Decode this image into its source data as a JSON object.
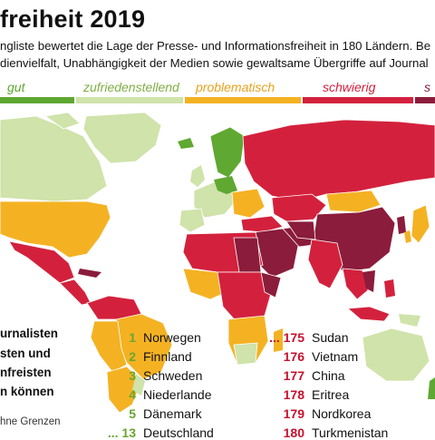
{
  "header": {
    "title": "freiheit 2019",
    "subtitle_line1": "ngliste bewertet die Lage der Presse- und Informationsfreiheit in 180 Ländern. Be",
    "subtitle_line2": "dienvielfalt, Unabhängigkeit der Medien sowie gewaltsame Übergriffe auf Journal"
  },
  "legend": [
    {
      "label": "gut",
      "color": "#5fa831"
    },
    {
      "label": "zufriedenstellend",
      "color": "#cfe3aa"
    },
    {
      "label": "problematisch",
      "color": "#f4b223"
    },
    {
      "label": "schwierig",
      "color": "#d3213d"
    },
    {
      "label": "s",
      "color": "#8b1c3b"
    }
  ],
  "info_box": {
    "line1": "urnalisten",
    "line2": "sten und",
    "line3": "nfreisten",
    "line4": "n können"
  },
  "ranking_left": [
    {
      "rank": "1",
      "country": "Norwegen"
    },
    {
      "rank": "2",
      "country": "Finnland"
    },
    {
      "rank": "3",
      "country": "Schweden"
    },
    {
      "rank": "4",
      "country": "Niederlande"
    },
    {
      "rank": "5",
      "country": "Dänemark"
    },
    {
      "rank": "... 13",
      "country": "Deutschland"
    }
  ],
  "ranking_right": [
    {
      "rank": "... 175",
      "country": "Sudan"
    },
    {
      "rank": "176",
      "country": "Vietnam"
    },
    {
      "rank": "177",
      "country": "China"
    },
    {
      "rank": "178",
      "country": "Eritrea"
    },
    {
      "rank": "179",
      "country": "Nordkorea"
    },
    {
      "rank": "180",
      "country": "Turkmenistan"
    }
  ],
  "source": "hne Grenzen"
}
